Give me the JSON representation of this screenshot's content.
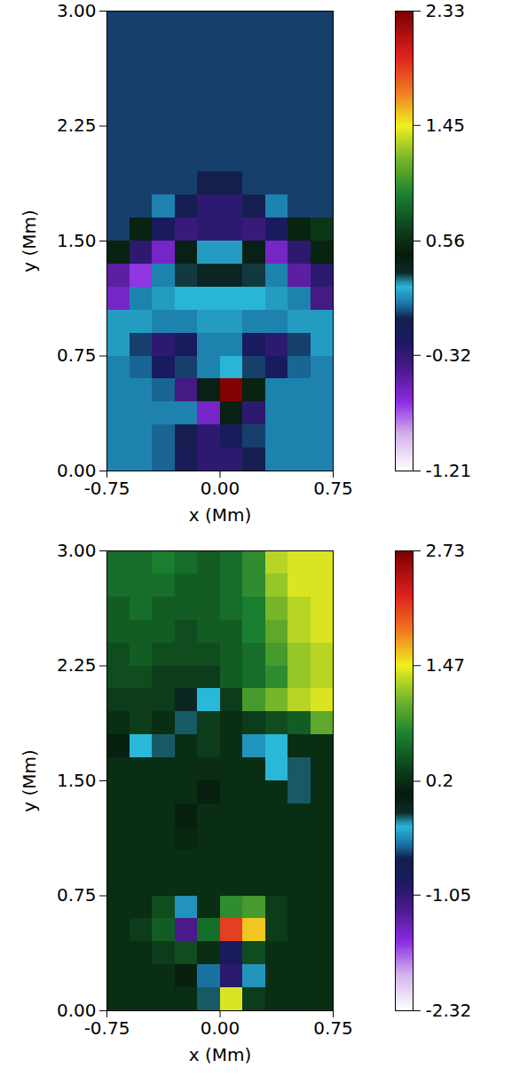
{
  "chart_data": [
    {
      "type": "heatmap",
      "x_label": "x (Mm)",
      "y_label": "y (Mm)",
      "xlim": [
        -0.75,
        0.75
      ],
      "ylim": [
        0,
        3
      ],
      "xticks": [
        {
          "value": -0.75,
          "label": "-0.75"
        },
        {
          "value": 0,
          "label": "0.00"
        },
        {
          "value": 0.75,
          "label": "0.75"
        }
      ],
      "yticks": [
        {
          "value": 0,
          "label": "0.00"
        },
        {
          "value": 0.75,
          "label": "0.75"
        },
        {
          "value": 1.5,
          "label": "1.50"
        },
        {
          "value": 2.25,
          "label": "2.25"
        },
        {
          "value": 3,
          "label": "3.00"
        }
      ],
      "x_edges": [
        -0.75,
        -0.6,
        -0.45,
        -0.3,
        -0.15,
        0,
        0.15,
        0.3,
        0.45,
        0.6,
        0.75
      ],
      "y_edges": [
        3,
        2.85,
        2.7,
        2.55,
        2.4,
        2.25,
        2.1,
        1.95,
        1.8,
        1.65,
        1.5,
        1.35,
        1.2,
        1.05,
        0.9,
        0.75,
        0.6,
        0.45,
        0.3,
        0.15,
        0
      ],
      "cells": [
        [
          0,
          0,
          0,
          0,
          0,
          0,
          0,
          0,
          0,
          0
        ],
        [
          0,
          0,
          0,
          0,
          0,
          0,
          0,
          0,
          0,
          0
        ],
        [
          0,
          0,
          0,
          0,
          0,
          0,
          0,
          0,
          0,
          0
        ],
        [
          0,
          0,
          0,
          0,
          0,
          0,
          0,
          0,
          0,
          0
        ],
        [
          0,
          0,
          0,
          0,
          0,
          0,
          0,
          0,
          0,
          0
        ],
        [
          0,
          0,
          0,
          0,
          0,
          0,
          0,
          0,
          0,
          0
        ],
        [
          0,
          0,
          0,
          0,
          0,
          0,
          0,
          0,
          0,
          0
        ],
        [
          0,
          0,
          0,
          0,
          -0.05,
          -0.05,
          0,
          0,
          0,
          0
        ],
        [
          0,
          0,
          0.1,
          -0.1,
          -0.3,
          -0.3,
          -0.1,
          0.1,
          0,
          0
        ],
        [
          0,
          0.5,
          -0.2,
          -0.35,
          -0.3,
          -0.3,
          -0.35,
          -0.2,
          0.5,
          0.6
        ],
        [
          0.5,
          -0.3,
          -0.6,
          0.4,
          0.15,
          0.15,
          0.4,
          -0.6,
          -0.3,
          0.5
        ],
        [
          -0.5,
          -0.7,
          0.1,
          0.3,
          0.35,
          0.35,
          0.3,
          0.1,
          -0.5,
          -0.3
        ],
        [
          -0.6,
          0.1,
          0.15,
          0.2,
          0.2,
          0.2,
          0.2,
          0.15,
          0.1,
          -0.4
        ],
        [
          0.15,
          0.15,
          0.1,
          0.1,
          0.15,
          0.15,
          0.1,
          0.1,
          0.15,
          0.15
        ],
        [
          0.15,
          0,
          -0.3,
          -0.2,
          0.1,
          0.1,
          -0.2,
          -0.3,
          0,
          0.15
        ],
        [
          0.1,
          0.05,
          -0.2,
          0,
          0.1,
          0.2,
          0,
          -0.2,
          0.05,
          0.1
        ],
        [
          0.1,
          0.1,
          0.05,
          -0.4,
          0.4,
          2.3,
          0.5,
          0.1,
          0.1,
          0.1
        ],
        [
          0.1,
          0.1,
          0.1,
          0.1,
          -0.6,
          0.4,
          -0.3,
          0.1,
          0.1,
          0.1
        ],
        [
          0.1,
          0.1,
          0.05,
          -0.1,
          -0.3,
          -0.2,
          0,
          0.1,
          0.1,
          0.1
        ],
        [
          0.1,
          0.1,
          0.05,
          -0.15,
          -0.3,
          -0.3,
          -0.1,
          0.1,
          0.1,
          0.1
        ]
      ],
      "colorbar_lim": [
        -1.21,
        2.33
      ],
      "colorbar_ticks": [
        2.33,
        1.45,
        0.56,
        -0.32,
        -1.21
      ]
    },
    {
      "type": "heatmap",
      "x_label": "x (Mm)",
      "y_label": "y (Mm)",
      "xlim": [
        -0.75,
        0.75
      ],
      "ylim": [
        0,
        3
      ],
      "xticks": [
        {
          "value": -0.75,
          "label": "-0.75"
        },
        {
          "value": 0,
          "label": "0.00"
        },
        {
          "value": 0.75,
          "label": "0.75"
        }
      ],
      "yticks": [
        {
          "value": 0,
          "label": "0.00"
        },
        {
          "value": 0.75,
          "label": "0.75"
        },
        {
          "value": 1.5,
          "label": "1.50"
        },
        {
          "value": 2.25,
          "label": "2.25"
        },
        {
          "value": 3,
          "label": "3.00"
        }
      ],
      "x_edges": [
        -0.75,
        -0.6,
        -0.45,
        -0.3,
        -0.15,
        0,
        0.15,
        0.3,
        0.45,
        0.6,
        0.75
      ],
      "y_edges": [
        3,
        2.85,
        2.7,
        2.55,
        2.4,
        2.25,
        2.1,
        1.95,
        1.8,
        1.65,
        1.5,
        1.35,
        1.2,
        1.05,
        0.9,
        0.75,
        0.6,
        0.45,
        0.3,
        0.15,
        0
      ],
      "cells": [
        [
          0.6,
          0.6,
          0.7,
          0.6,
          0.5,
          0.6,
          0.8,
          1.3,
          1.4,
          1.4
        ],
        [
          0.6,
          0.6,
          0.6,
          0.5,
          0.5,
          0.6,
          0.8,
          1.2,
          1.4,
          1.4
        ],
        [
          0.5,
          0.6,
          0.5,
          0.5,
          0.5,
          0.6,
          0.7,
          1.1,
          1.3,
          1.4
        ],
        [
          0.5,
          0.5,
          0.5,
          0.4,
          0.5,
          0.5,
          0.7,
          1.0,
          1.3,
          1.4
        ],
        [
          0.4,
          0.5,
          0.4,
          0.4,
          0.4,
          0.5,
          0.6,
          0.9,
          1.2,
          1.3
        ],
        [
          0.4,
          0.4,
          0.3,
          0.3,
          0.3,
          0.5,
          0.6,
          0.8,
          1.2,
          1.3
        ],
        [
          0.3,
          0.3,
          0.3,
          -0.1,
          -0.3,
          0.3,
          0.9,
          1.1,
          1.3,
          1.4
        ],
        [
          0.2,
          0.3,
          0.2,
          -0.2,
          0.3,
          0.2,
          0.3,
          0.4,
          0.5,
          1.0
        ],
        [
          0.1,
          -0.3,
          -0.2,
          0.2,
          0.3,
          0.2,
          -0.4,
          -0.3,
          0.2,
          0.2
        ],
        [
          0.2,
          0.2,
          0.2,
          0.2,
          0.2,
          0.2,
          0.2,
          -0.3,
          -0.2,
          0.2
        ],
        [
          0.2,
          0.2,
          0.2,
          0.2,
          0.1,
          0.2,
          0.2,
          0.2,
          -0.2,
          0.2
        ],
        [
          0.2,
          0.2,
          0.2,
          0.1,
          0.2,
          0.2,
          0.2,
          0.2,
          0.2,
          0.2
        ],
        [
          0.2,
          0.2,
          0.2,
          0.15,
          0.2,
          0.2,
          0.2,
          0.2,
          0.2,
          0.2
        ],
        [
          0.2,
          0.2,
          0.2,
          0.2,
          0.2,
          0.2,
          0.2,
          0.2,
          0.2,
          0.2
        ],
        [
          0.2,
          0.2,
          0.2,
          0.2,
          0.2,
          0.2,
          0.2,
          0.2,
          0.2,
          0.2
        ],
        [
          0.2,
          0.2,
          0.4,
          -0.4,
          0.2,
          0.8,
          0.9,
          0.3,
          0.2,
          0.2
        ],
        [
          0.2,
          0.3,
          0.5,
          -1.2,
          0.6,
          2.1,
          1.6,
          0.3,
          0.2,
          0.2
        ],
        [
          0.2,
          0.2,
          0.3,
          0.4,
          0.2,
          -0.9,
          0.4,
          0.2,
          0.2,
          0.2
        ],
        [
          0.2,
          0.2,
          0.2,
          0.1,
          -0.5,
          -1.0,
          -0.4,
          0.2,
          0.2,
          0.2
        ],
        [
          0.2,
          0.2,
          0.2,
          0.2,
          -0.2,
          1.4,
          0.3,
          0.2,
          0.2,
          0.2
        ]
      ],
      "colorbar_lim": [
        -2.32,
        2.73
      ],
      "colorbar_ticks": [
        2.73,
        1.47,
        0.2,
        -1.05,
        -2.32
      ]
    }
  ]
}
